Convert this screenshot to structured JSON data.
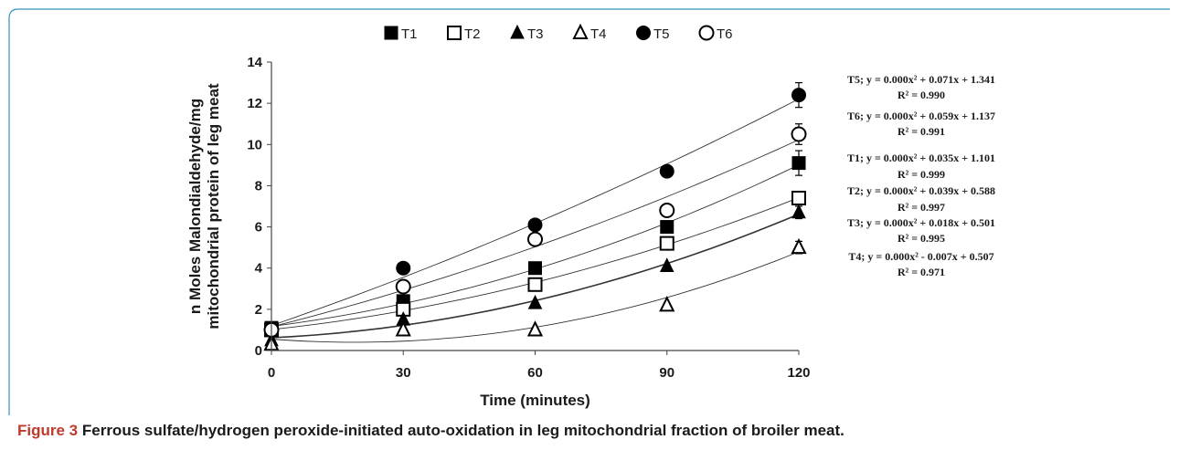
{
  "caption": {
    "label": "Figure 3",
    "text": "Ferrous sulfate/hydrogen peroxide-initiated auto-oxidation in leg mitochondrial fraction of broiler meat."
  },
  "chart_data": {
    "type": "scatter",
    "xlabel": "Time (minutes)",
    "ylabel_line1": "n Moles Malondialdehyde/mg",
    "ylabel_line2": "mitochondrial protein of leg meat",
    "xlim": [
      0,
      120
    ],
    "ylim": [
      0,
      14
    ],
    "x_ticks": [
      0,
      30,
      60,
      90,
      120
    ],
    "y_ticks": [
      0,
      2,
      4,
      6,
      8,
      10,
      12,
      14
    ],
    "x": [
      0,
      30,
      60,
      90,
      120
    ],
    "legend_position": "top",
    "series": [
      {
        "name": "T1",
        "marker": "square-filled",
        "values": [
          1.1,
          2.4,
          4.0,
          6.0,
          9.1
        ],
        "fit": [
          0.0,
          0.035,
          1.101
        ]
      },
      {
        "name": "T2",
        "marker": "square-open",
        "values": [
          1.0,
          2.0,
          3.2,
          5.2,
          7.4
        ],
        "fit": [
          0.0,
          0.039,
          0.588
        ]
      },
      {
        "name": "T3",
        "marker": "triangle-filled",
        "values": [
          0.5,
          1.5,
          2.3,
          4.1,
          6.7
        ],
        "fit": [
          0.0,
          0.018,
          0.501
        ]
      },
      {
        "name": "T4",
        "marker": "triangle-open",
        "values": [
          0.3,
          1.0,
          1.0,
          2.2,
          5.0
        ],
        "fit": [
          0.0,
          -0.007,
          0.507
        ]
      },
      {
        "name": "T5",
        "marker": "circle-filled",
        "values": [
          1.0,
          4.0,
          6.1,
          8.7,
          12.4
        ],
        "fit": [
          0.0,
          0.071,
          1.341
        ]
      },
      {
        "name": "T6",
        "marker": "circle-open",
        "values": [
          1.0,
          3.1,
          5.4,
          6.8,
          10.5
        ],
        "fit": [
          0.0,
          0.059,
          1.137
        ]
      }
    ],
    "error_bars_at_120": [
      0.6,
      0.3,
      0.3,
      0.3,
      0.6,
      0.5
    ],
    "equations": [
      {
        "series": "T5",
        "eq": "T5; y = 0.000x² + 0.071x + 1.341",
        "r2": "R² = 0.990"
      },
      {
        "series": "T6",
        "eq": "T6; y = 0.000x² + 0.059x + 1.137",
        "r2": "R² = 0.991"
      },
      {
        "series": "T1",
        "eq": "T1; y = 0.000x² + 0.035x + 1.101",
        "r2": "R² = 0.999"
      },
      {
        "series": "T2",
        "eq": "T2; y = 0.000x² + 0.039x + 0.588",
        "r2": "R² = 0.997"
      },
      {
        "series": "T3",
        "eq": "T3; y = 0.000x² + 0.018x + 0.501",
        "r2": "R² = 0.995"
      },
      {
        "series": "T4",
        "eq": "T4; y = 0.000x² - 0.007x + 0.507",
        "r2": "R² = 0.971"
      }
    ]
  }
}
